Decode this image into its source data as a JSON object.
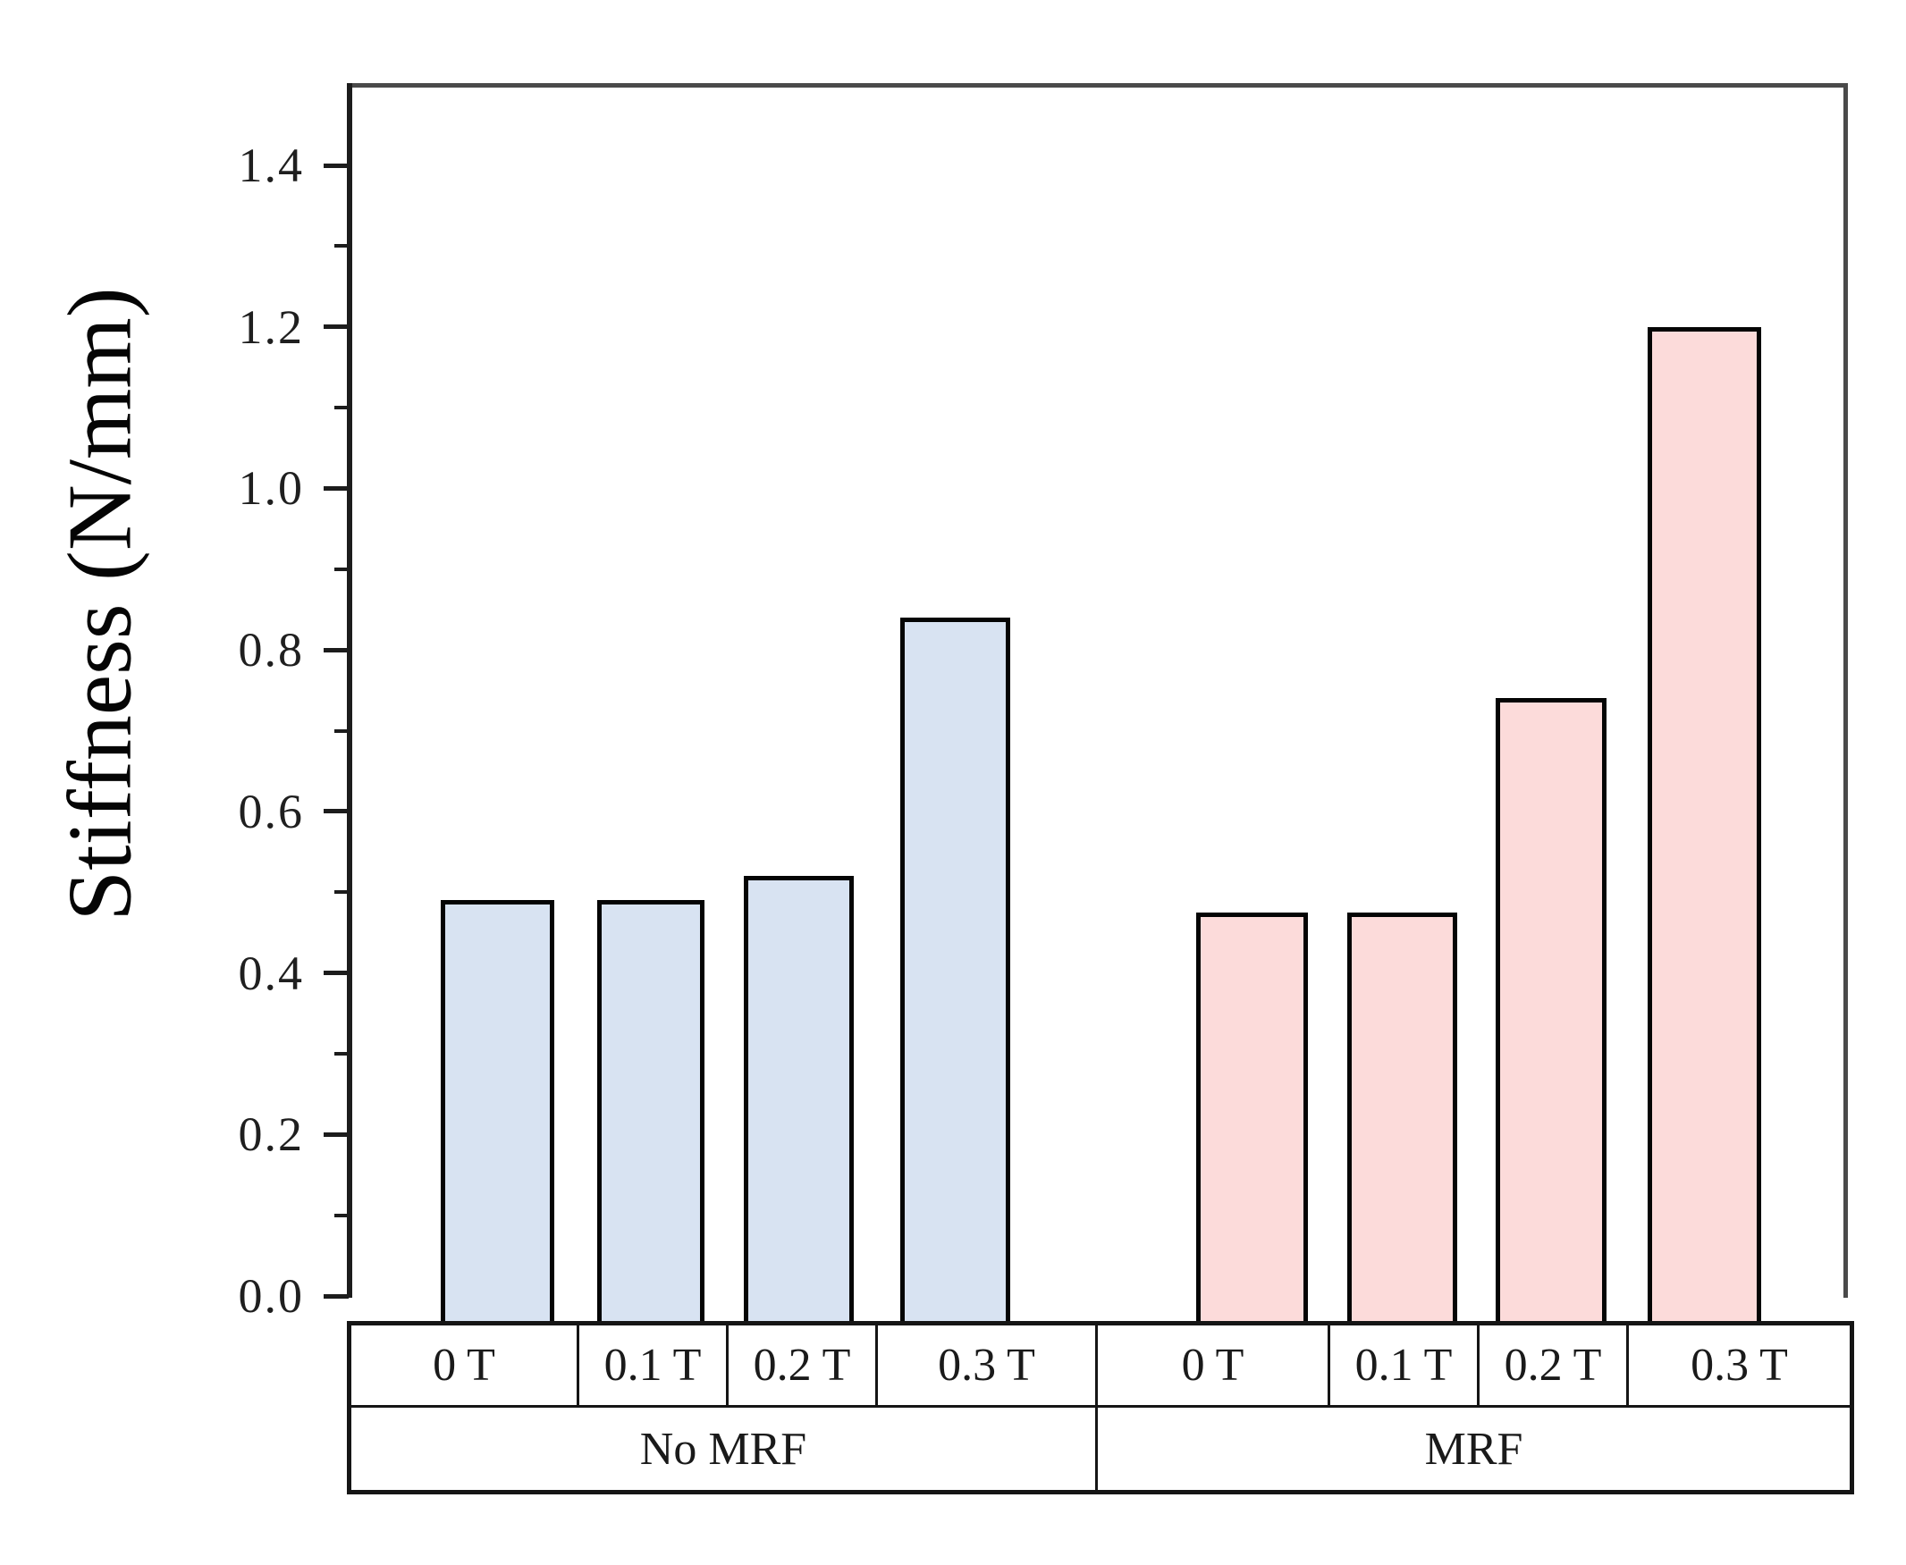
{
  "chart_data": {
    "type": "bar",
    "title": "",
    "ylabel": "Stiffness (N/mm)",
    "xlabel": "",
    "ylim": [
      0,
      1.5
    ],
    "ytick_labels": [
      "0.0",
      "0.2",
      "0.4",
      "0.6",
      "0.8",
      "1.0",
      "1.2",
      "1.4"
    ],
    "ytick_values": [
      0,
      0.2,
      0.4,
      0.6,
      0.8,
      1.0,
      1.2,
      1.4
    ],
    "minor_tick_values": [
      0.1,
      0.3,
      0.5,
      0.7,
      0.9,
      1.1,
      1.3
    ],
    "grid": false,
    "legend_position": "none",
    "groups": [
      {
        "name": "No MRF",
        "color": "#d8e3f2",
        "border_color": "#050505",
        "categories": [
          "0 T",
          "0.1 T",
          "0.2 T",
          "0.3 T"
        ],
        "values": [
          0.49,
          0.49,
          0.52,
          0.84
        ]
      },
      {
        "name": "MRF",
        "color": "#fcdbda",
        "border_color": "#050505",
        "categories": [
          "0 T",
          "0.1 T",
          "0.2 T",
          "0.3 T"
        ],
        "values": [
          0.475,
          0.475,
          0.74,
          1.2
        ]
      }
    ]
  }
}
